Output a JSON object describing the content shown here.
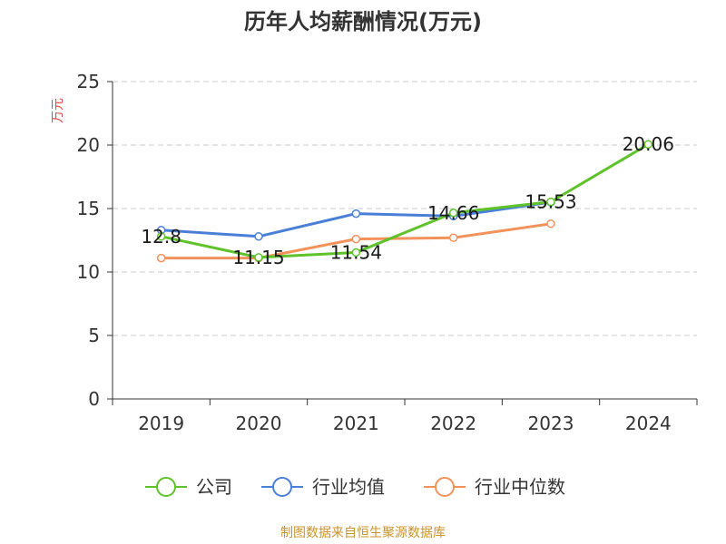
{
  "chart_data": {
    "type": "line",
    "title": "历年人均薪酬情况(万元)",
    "ylabel": "万元",
    "xlabel": "",
    "categories": [
      "2019",
      "2020",
      "2021",
      "2022",
      "2023",
      "2024"
    ],
    "ylim": [
      0,
      25
    ],
    "yticks": [
      0,
      5,
      10,
      15,
      20,
      25
    ],
    "grid": "horizontal-dashed",
    "legend_position": "bottom",
    "series": [
      {
        "name": "公司",
        "color": "#5fc22b",
        "values": [
          12.8,
          11.15,
          11.54,
          14.66,
          15.53,
          20.06
        ],
        "labels": [
          "12.8",
          "11.15",
          "11.54",
          "14.66",
          "15.53",
          "20.06"
        ]
      },
      {
        "name": "行业均值",
        "color": "#4a7fd8",
        "values": [
          13.3,
          12.8,
          14.6,
          14.4,
          15.5,
          null
        ]
      },
      {
        "name": "行业中位数",
        "color": "#f2925a",
        "values": [
          11.1,
          11.1,
          12.6,
          12.7,
          13.8,
          null
        ]
      }
    ]
  },
  "source_text": "制图数据来自恒生聚源数据库"
}
